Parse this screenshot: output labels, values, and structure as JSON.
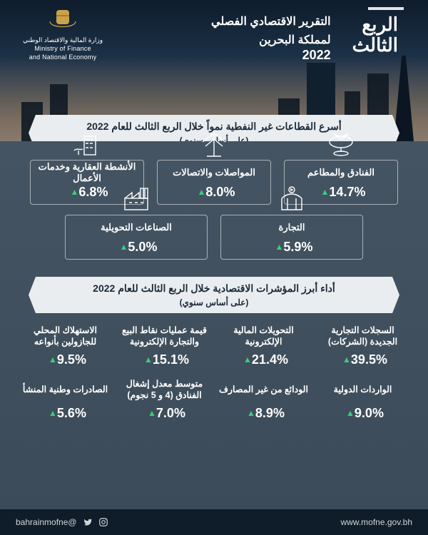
{
  "colors": {
    "triangle_up": "#37d07c",
    "ribbon_bg": "#e9edef",
    "ribbon_text": "#1a2a3a",
    "footer_bg": "#0f1c29"
  },
  "ministry": {
    "line1_ar": "وزارة المالية والاقتصاد الوطني",
    "line2_en": "Ministry of Finance",
    "line3_en": "and National Economy"
  },
  "header": {
    "quarter_line1": "الربع",
    "quarter_line2": "الثالث",
    "title_line1": "التقرير الاقتصادي الفصلي",
    "title_line2": "لمملكة البحرين",
    "year": "2022"
  },
  "ribbon1": {
    "title": "أسرع القطاعات غير النفطية نمواً خلال الربع الثالث للعام 2022",
    "subtitle": "(على أساس سنوي)"
  },
  "sectors_row1": [
    {
      "id": "hotels",
      "label": "الفنادق والمطاعم",
      "pct": "14.7%"
    },
    {
      "id": "transport",
      "label": "المواصلات والاتصالات",
      "pct": "8.0%"
    },
    {
      "id": "realestate",
      "label": "الأنشطة العقارية وخدمات الأعمال",
      "pct": "6.8%"
    }
  ],
  "sectors_row2": [
    {
      "id": "trade",
      "label": "التجارة",
      "pct": "5.9%"
    },
    {
      "id": "manufact",
      "label": "الصناعات التحويلية",
      "pct": "5.0%"
    }
  ],
  "ribbon2": {
    "title": "أداء أبرز المؤشرات الاقتصادية خلال الربع الثالث للعام 2022",
    "subtitle": "(على أساس سنوي)"
  },
  "indicators_row1": [
    {
      "label": "السجلات التجارية الجديدة (الشركات)",
      "pct": "39.5%"
    },
    {
      "label": "التحويلات المالية الإلكترونية",
      "pct": "21.4%"
    },
    {
      "label": "قيمة عمليات نقاط البيع والتجارة الإلكترونية",
      "pct": "15.1%"
    },
    {
      "label": "الاستهلاك المحلي للجازولين بأنواعه",
      "pct": "9.5%"
    }
  ],
  "indicators_row2": [
    {
      "label": "الواردات الدولية",
      "pct": "9.0%"
    },
    {
      "label": "الودائع من غير المصارف",
      "pct": "8.9%"
    },
    {
      "label": "متوسط معدل إشغال الفنادق (4 و 5 نجوم)",
      "pct": "7.0%"
    },
    {
      "label": "الصادرات وطنية المنشأ",
      "pct": "5.6%"
    }
  ],
  "footer": {
    "site": "www.mofne.gov.bh",
    "handle": "@bahrainmofne"
  }
}
